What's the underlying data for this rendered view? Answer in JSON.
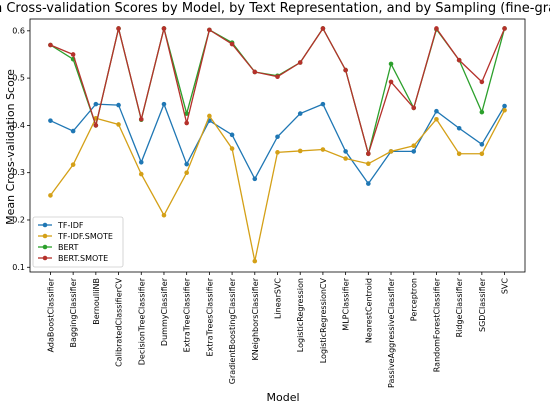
{
  "chart_data": {
    "type": "line",
    "title": "Mean Cross-validation Scores by Model, by Text Representation, and by Sampling (fine-grained)",
    "xlabel": "Model",
    "ylabel": "Mean Cross-validation Score",
    "ylim": [
      0.09,
      0.625
    ],
    "yticks": [
      0.1,
      0.2,
      0.3,
      0.4,
      0.5,
      0.6
    ],
    "ytick_labels": [
      "0.1",
      "0.2",
      "0.3",
      "0.4",
      "0.5",
      "0.6"
    ],
    "grid": false,
    "legend_position": "lower-left",
    "categories": [
      "AdaBoostClassifier",
      "BaggingClassifier",
      "BernoulliNB",
      "CalibratedClassifierCV",
      "DecisionTreeClassifier",
      "DummyClassifier",
      "ExtraTreeClassifier",
      "ExtraTreesClassifier",
      "GradientBoostingClassifier",
      "KNeighborsClassifier",
      "LinearSVC",
      "LogisticRegression",
      "LogisticRegressionCV",
      "MLPClassifier",
      "NearestCentroid",
      "PassiveAggressiveClassifier",
      "Perceptron",
      "RandomForestClassifier",
      "RidgeClassifier",
      "SGDClassifier",
      "SVC"
    ],
    "series": [
      {
        "name": "TF-IDF",
        "color": "#1f77b4",
        "values": [
          0.41,
          0.388,
          0.445,
          0.443,
          0.322,
          0.445,
          0.318,
          0.41,
          0.38,
          0.287,
          0.376,
          0.425,
          0.445,
          0.345,
          0.277,
          0.345,
          0.345,
          0.43,
          0.394,
          0.36,
          0.441
        ]
      },
      {
        "name": "TF-IDF.SMOTE",
        "color": "#d4a017",
        "values": [
          0.252,
          0.317,
          0.415,
          0.402,
          0.297,
          0.21,
          0.3,
          0.42,
          0.351,
          0.113,
          0.343,
          0.346,
          0.349,
          0.33,
          0.319,
          0.345,
          0.357,
          0.413,
          0.34,
          0.34,
          0.432
        ]
      },
      {
        "name": "BERT",
        "color": "#2ca02c",
        "values": [
          0.57,
          0.54,
          0.4,
          0.605,
          0.412,
          0.605,
          0.425,
          0.602,
          0.575,
          0.513,
          0.505,
          0.533,
          0.605,
          0.517,
          0.34,
          0.53,
          0.437,
          0.603,
          0.538,
          0.428,
          0.605
        ]
      },
      {
        "name": "BERT.SMOTE",
        "color": "#b5312b",
        "values": [
          0.57,
          0.55,
          0.4,
          0.605,
          0.413,
          0.605,
          0.405,
          0.602,
          0.572,
          0.513,
          0.503,
          0.533,
          0.605,
          0.517,
          0.34,
          0.492,
          0.437,
          0.605,
          0.538,
          0.492,
          0.605
        ]
      }
    ]
  }
}
